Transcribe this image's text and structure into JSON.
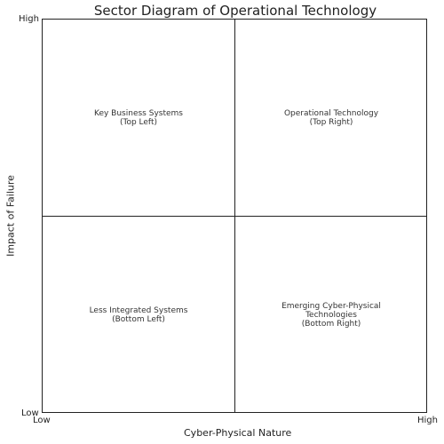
{
  "title": "Sector Diagram of Operational Technology",
  "xlabel": "Cyber-Physical Nature",
  "ylabel": "Impact of Failure",
  "x_ticks": {
    "low": "Low",
    "high": "High"
  },
  "y_ticks": {
    "low": "Low",
    "high": "High"
  },
  "quadrants": {
    "top_left": {
      "line1": "Key Business Systems",
      "line2": "(Top Left)"
    },
    "top_right": {
      "line1": "Operational Technology",
      "line2": "(Top Right)"
    },
    "bottom_left": {
      "line1": "Less Integrated Systems",
      "line2": "(Bottom Left)"
    },
    "bottom_right": {
      "line1": "Emerging Cyber-Physical",
      "line2": "Technologies",
      "line3": "(Bottom Right)"
    }
  }
}
